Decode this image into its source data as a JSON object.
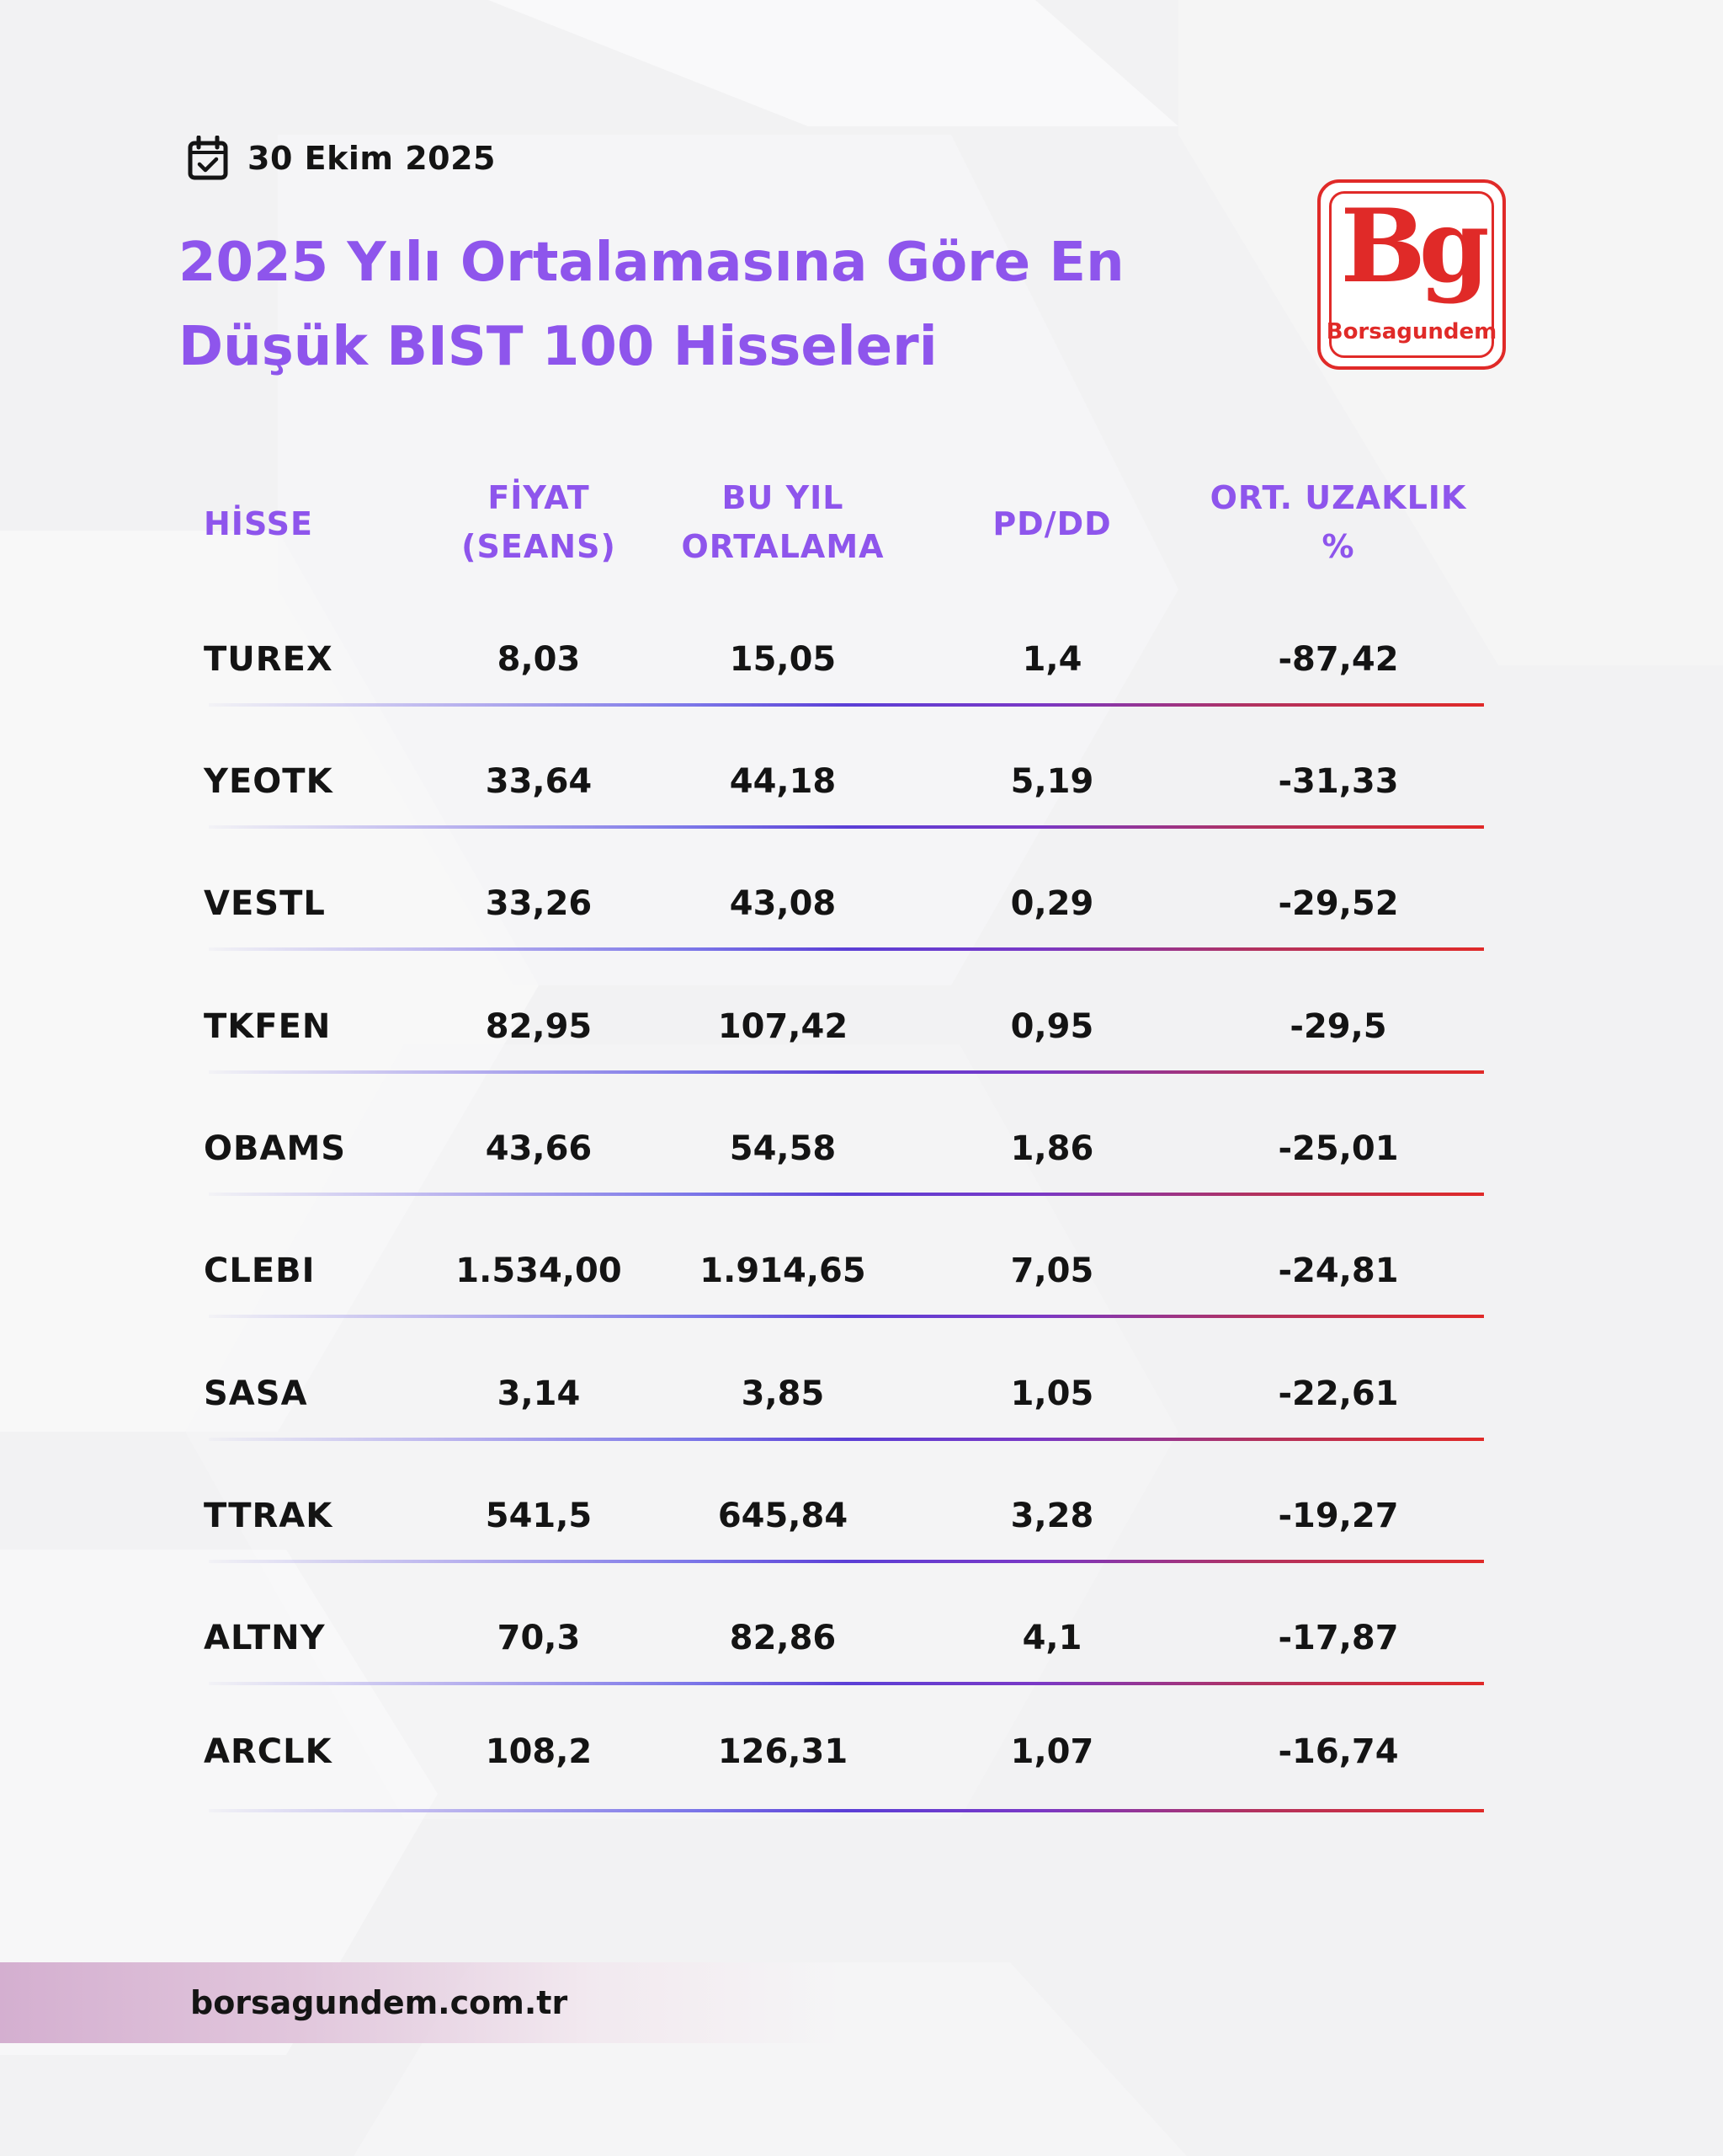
{
  "header": {
    "date": "30 Ekim 2025",
    "title_line1": "2025 Yılı Ortalamasına Göre En",
    "title_line2": "Düşük BIST 100 Hisseleri"
  },
  "logo": {
    "mark": "Bg",
    "name": "Borsagundem"
  },
  "table": {
    "columns": [
      {
        "line1": "HİSSE",
        "line2": ""
      },
      {
        "line1": "FİYAT",
        "line2": "(SEANS)"
      },
      {
        "line1": "BU YIL",
        "line2": "ORTALAMA"
      },
      {
        "line1": "PD/DD",
        "line2": ""
      },
      {
        "line1": "ORT. UZAKLIK",
        "line2": "%"
      }
    ],
    "rows": [
      {
        "ticker": "TUREX",
        "price": "8,03",
        "avg": "15,05",
        "pddd": "1,4",
        "dist": "-87,42"
      },
      {
        "ticker": "YEOTK",
        "price": "33,64",
        "avg": "44,18",
        "pddd": "5,19",
        "dist": "-31,33"
      },
      {
        "ticker": "VESTL",
        "price": "33,26",
        "avg": "43,08",
        "pddd": "0,29",
        "dist": "-29,52"
      },
      {
        "ticker": "TKFEN",
        "price": "82,95",
        "avg": "107,42",
        "pddd": "0,95",
        "dist": "-29,5"
      },
      {
        "ticker": "OBAMS",
        "price": "43,66",
        "avg": "54,58",
        "pddd": "1,86",
        "dist": "-25,01"
      },
      {
        "ticker": "CLEBI",
        "price": "1.534,00",
        "avg": "1.914,65",
        "pddd": "7,05",
        "dist": "-24,81"
      },
      {
        "ticker": "SASA",
        "price": "3,14",
        "avg": "3,85",
        "pddd": "1,05",
        "dist": "-22,61"
      },
      {
        "ticker": "TTRAK",
        "price": "541,5",
        "avg": "645,84",
        "pddd": "3,28",
        "dist": "-19,27"
      },
      {
        "ticker": "ALTNY",
        "price": "70,3",
        "avg": "82,86",
        "pddd": "4,1",
        "dist": "-17,87"
      },
      {
        "ticker": "ARCLK",
        "price": "108,2",
        "avg": "126,31",
        "pddd": "1,07",
        "dist": "-16,74"
      }
    ]
  },
  "footer": {
    "site": "borsagundem.com.tr"
  },
  "colors": {
    "accent_purple": "#8e55ec",
    "brand_red": "#e02a28",
    "text": "#141414"
  },
  "icons": {
    "date_icon": "calendar-check-icon"
  }
}
